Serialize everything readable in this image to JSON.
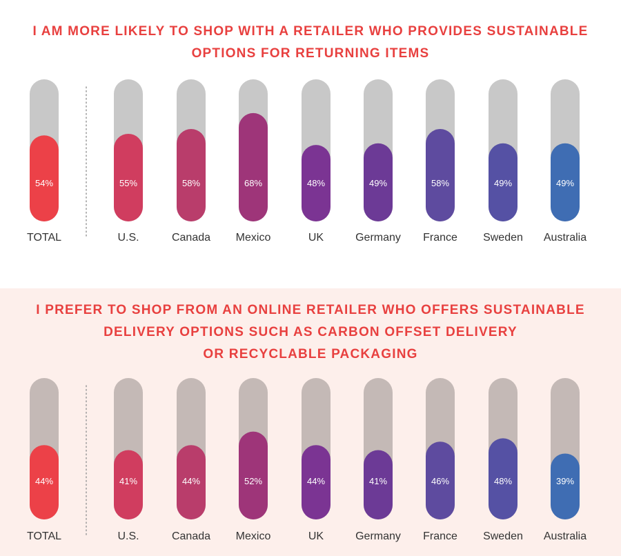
{
  "colors": {
    "title": "#e8403f",
    "track_top": "#c8c8c8",
    "track_bottom": "#c4b9b6",
    "bar_fills": [
      "#ec4148",
      "#d03d5f",
      "#b93d6b",
      "#9e3579",
      "#7b3493",
      "#6c3a96",
      "#5e4b9f",
      "#5551a4",
      "#3f6db3"
    ],
    "value_label": "#ffffff",
    "category_label": "#333333",
    "divider": "#999999"
  },
  "chart_data": [
    {
      "type": "bar",
      "title_lines": [
        "I AM MORE LIKELY TO SHOP WITH A RETAILER WHO PROVIDES SUSTAINABLE",
        "OPTIONS FOR RETURNING ITEMS"
      ],
      "categories": [
        "TOTAL",
        "U.S.",
        "Canada",
        "Mexico",
        "UK",
        "Germany",
        "France",
        "Sweden",
        "Australia"
      ],
      "values": [
        54,
        55,
        58,
        68,
        48,
        49,
        58,
        49,
        49
      ],
      "value_labels": [
        "54%",
        "55%",
        "58%",
        "68%",
        "48%",
        "49%",
        "58%",
        "49%",
        "49%"
      ],
      "unit": "%",
      "ylim": [
        0,
        100
      ]
    },
    {
      "type": "bar",
      "title_lines": [
        "I PREFER TO SHOP FROM AN ONLINE RETAILER WHO OFFERS SUSTAINABLE",
        "DELIVERY OPTIONS SUCH AS CARBON OFFSET DELIVERY",
        "OR RECYCLABLE PACKAGING"
      ],
      "categories": [
        "TOTAL",
        "U.S.",
        "Canada",
        "Mexico",
        "UK",
        "Germany",
        "France",
        "Sweden",
        "Australia"
      ],
      "values": [
        44,
        41,
        44,
        52,
        44,
        41,
        46,
        48,
        39
      ],
      "value_labels": [
        "44%",
        "41%",
        "44%",
        "52%",
        "44%",
        "41%",
        "46%",
        "48%",
        "39%"
      ],
      "unit": "%",
      "ylim": [
        0,
        100
      ]
    }
  ]
}
